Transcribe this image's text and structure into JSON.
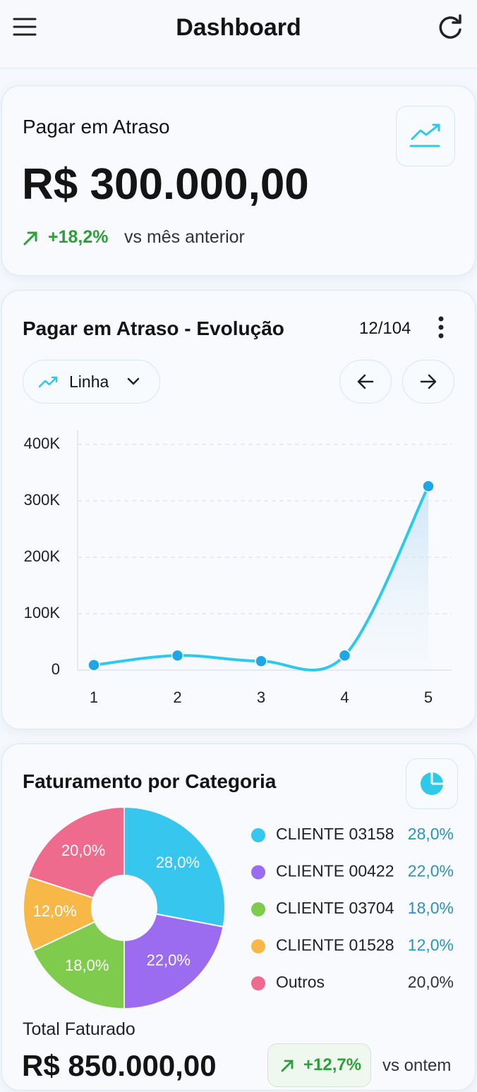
{
  "header": {
    "title": "Dashboard"
  },
  "kpi_card": {
    "title": "Pagar em Atraso",
    "value": "R$ 300.000,00",
    "change": "+18,2%",
    "comparison": "vs mês anterior"
  },
  "line_card": {
    "title": "Pagar em Atraso - Evolução",
    "pager": "12/104",
    "chart_type": "Linha",
    "chart": {
      "type": "line",
      "categories": [
        "1",
        "2",
        "3",
        "4",
        "5"
      ],
      "values": [
        9000,
        26000,
        16000,
        26000,
        326000
      ],
      "color": "#2ec9e8",
      "ylim": [
        0,
        425000
      ],
      "yticks": [
        0,
        {
          "value": 100000,
          "label": "100K"
        },
        {
          "value": 200000,
          "label": "200K"
        },
        {
          "value": 300000,
          "label": "300K"
        },
        {
          "value": 400000,
          "label": "400K"
        }
      ],
      "grid": true
    }
  },
  "category_card": {
    "title": "Faturamento por Categoria",
    "chart": {
      "type": "pie",
      "categories": [
        "CLIENTE 03158",
        "CLIENTE 00422",
        "CLIENTE 03704",
        "CLIENTE 01528",
        "Outros"
      ],
      "values": [
        28,
        22,
        18,
        12,
        20
      ],
      "value_labels": [
        "28,0%",
        "22,0%",
        "18,0%",
        "12,0%",
        "20,0%"
      ],
      "colors": [
        "#36c6ee",
        "#9b6cf0",
        "#7ecb4e",
        "#f7b847",
        "#ef6b8e"
      ]
    },
    "total_label": "Total Faturado",
    "total_value": "R$ 850.000,00",
    "change": "+12,7%",
    "comparison": "vs ontem"
  }
}
